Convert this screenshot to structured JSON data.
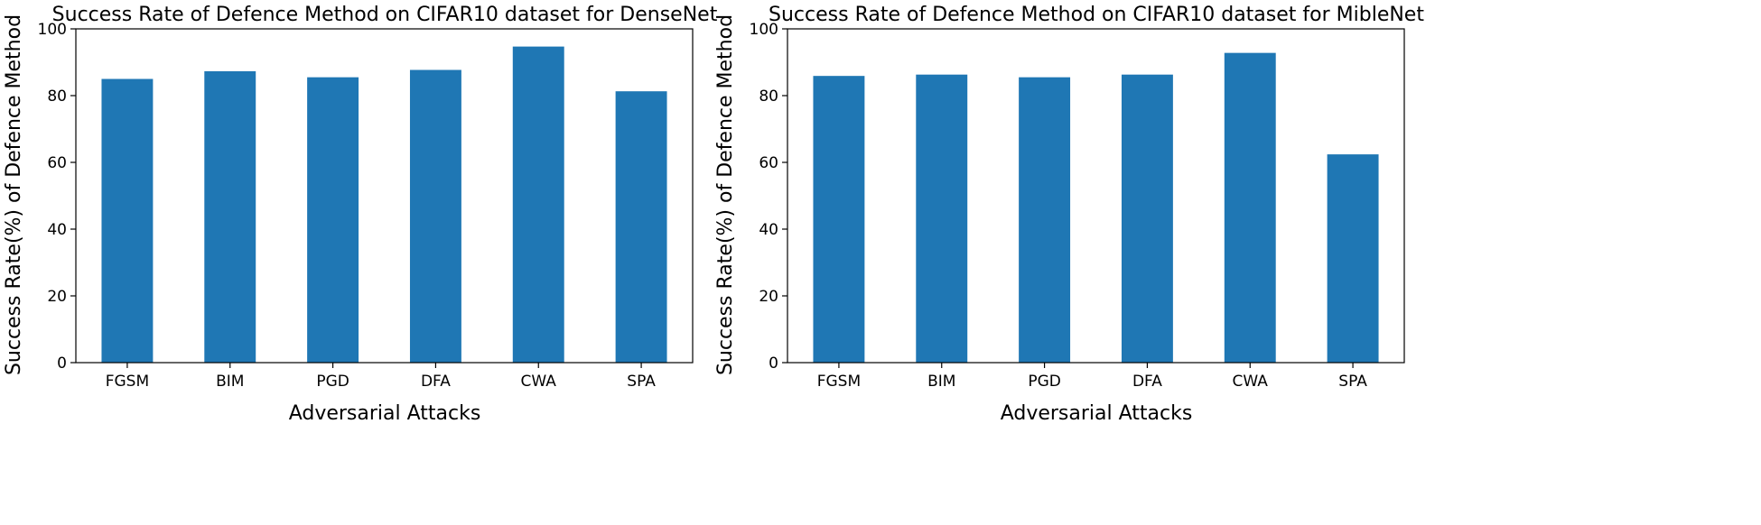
{
  "figure": {
    "bar_color": "#1f77b4",
    "frame_color": "#000000"
  },
  "chart_data": [
    {
      "type": "bar",
      "title": "Success Rate of Defence Method on CIFAR10 dataset for DenseNet",
      "xlabel": "Adversarial Attacks",
      "ylabel": "Success Rate(%) of Defence Method",
      "categories": [
        "FGSM",
        "BIM",
        "PGD",
        "DFA",
        "CWA",
        "SPA"
      ],
      "values": [
        85,
        87.3,
        85.5,
        87.7,
        94.7,
        81.3
      ],
      "ylim": [
        0,
        100
      ],
      "yticks": [
        0,
        20,
        40,
        60,
        80,
        100
      ],
      "grid": false,
      "legend": "none"
    },
    {
      "type": "bar",
      "title": "Success Rate of Defence Method on CIFAR10 dataset for MibleNet",
      "xlabel": "Adversarial Attacks",
      "ylabel": "Success Rate(%) of Defence Method",
      "categories": [
        "FGSM",
        "BIM",
        "PGD",
        "DFA",
        "CWA",
        "SPA"
      ],
      "values": [
        85.9,
        86.3,
        85.5,
        86.3,
        92.8,
        62.4
      ],
      "ylim": [
        0,
        100
      ],
      "yticks": [
        0,
        20,
        40,
        60,
        80,
        100
      ],
      "grid": false,
      "legend": "none"
    }
  ]
}
